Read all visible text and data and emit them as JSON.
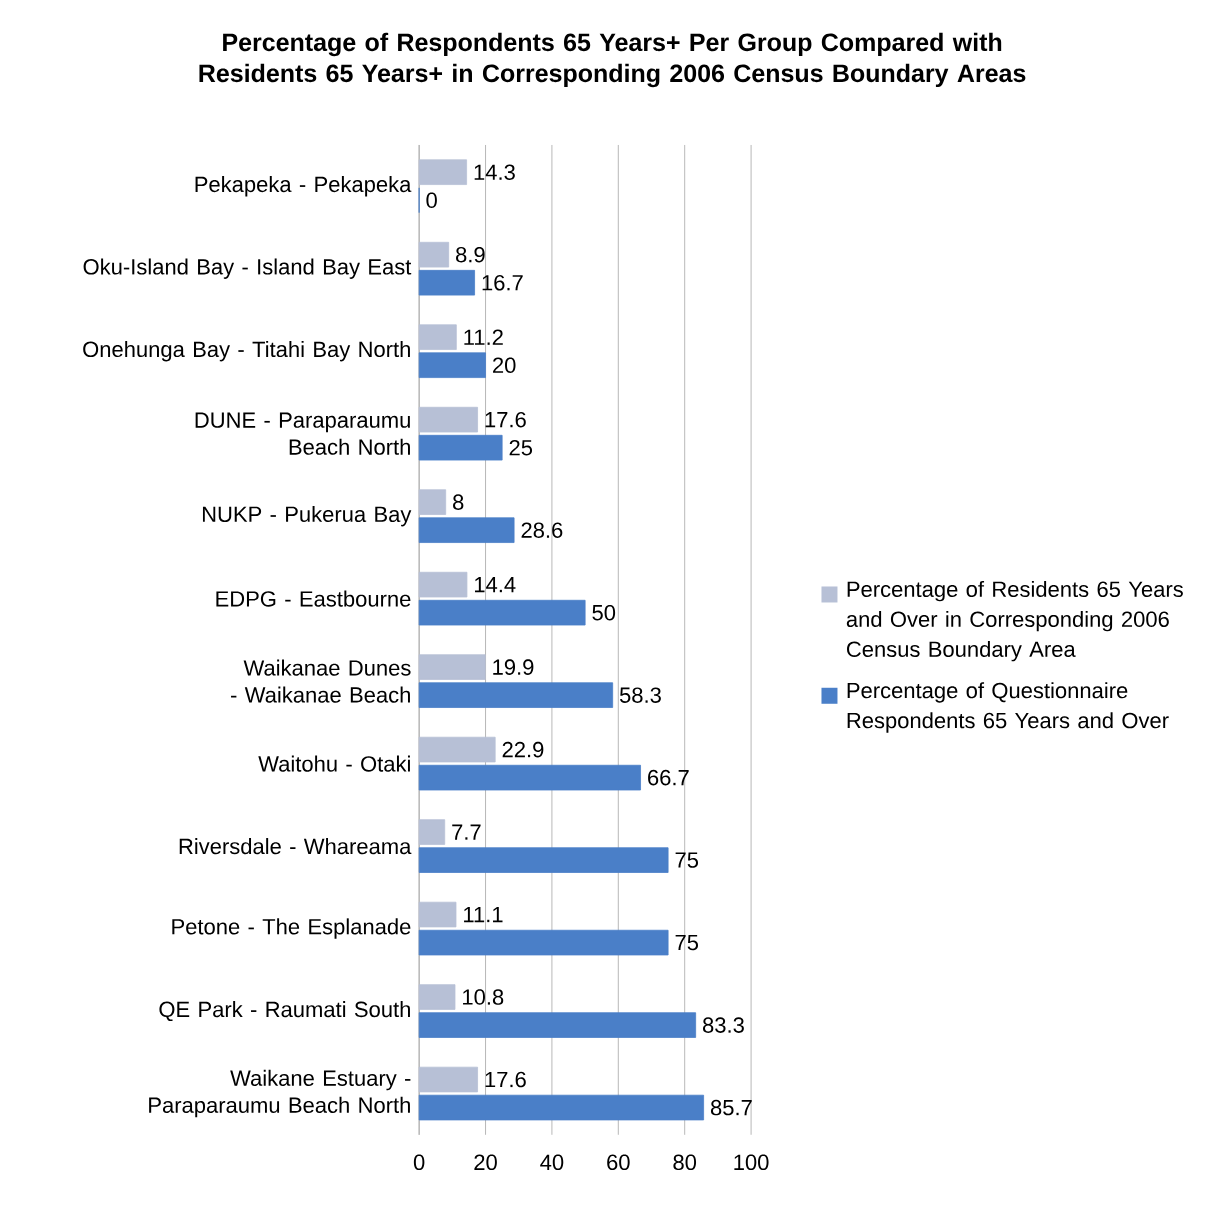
{
  "chart_data": {
    "type": "bar",
    "orientation": "horizontal",
    "title": "Percentage of Respondents 65 Years+ Per Group Compared with Residents 65 Years+ in Corresponding 2006 Census Boundary Areas",
    "categories": [
      "Pekapeka - Pekapeka",
      "Oku-Island Bay - Island Bay East",
      "Onehunga Bay - Titahi Bay North",
      "DUNE - Paraparaumu Beach North",
      "NUKP - Pukerua Bay",
      "EDPG - Eastbourne",
      "Waikanae Dunes - Waikanae Beach",
      "Waitohu - Otaki",
      "Riversdale - Whareama",
      "Petone - The Esplanade",
      "QE Park - Raumati South",
      "Waikane Estuary - Paraparaumu Beach North"
    ],
    "series": [
      {
        "name": "Percentage of Residents 65 Years and Over in Corresponding 2006 Census Boundary Area",
        "color": "#b7c0d6",
        "values": [
          14.3,
          8.9,
          11.2,
          17.6,
          8,
          14.4,
          19.9,
          22.9,
          7.7,
          11.1,
          10.8,
          17.6
        ]
      },
      {
        "name": "Percentage of Questionnaire Respondents 65 Years and Over",
        "color": "#4a7fc8",
        "values": [
          0,
          16.7,
          20,
          25,
          28.6,
          50,
          58.3,
          66.7,
          75,
          75,
          83.3,
          85.7
        ]
      }
    ],
    "xlim": [
      0,
      100
    ],
    "xticks": [
      0,
      20,
      40,
      60,
      80,
      100
    ],
    "grid": "x",
    "legend": "right",
    "data_labels": true
  }
}
